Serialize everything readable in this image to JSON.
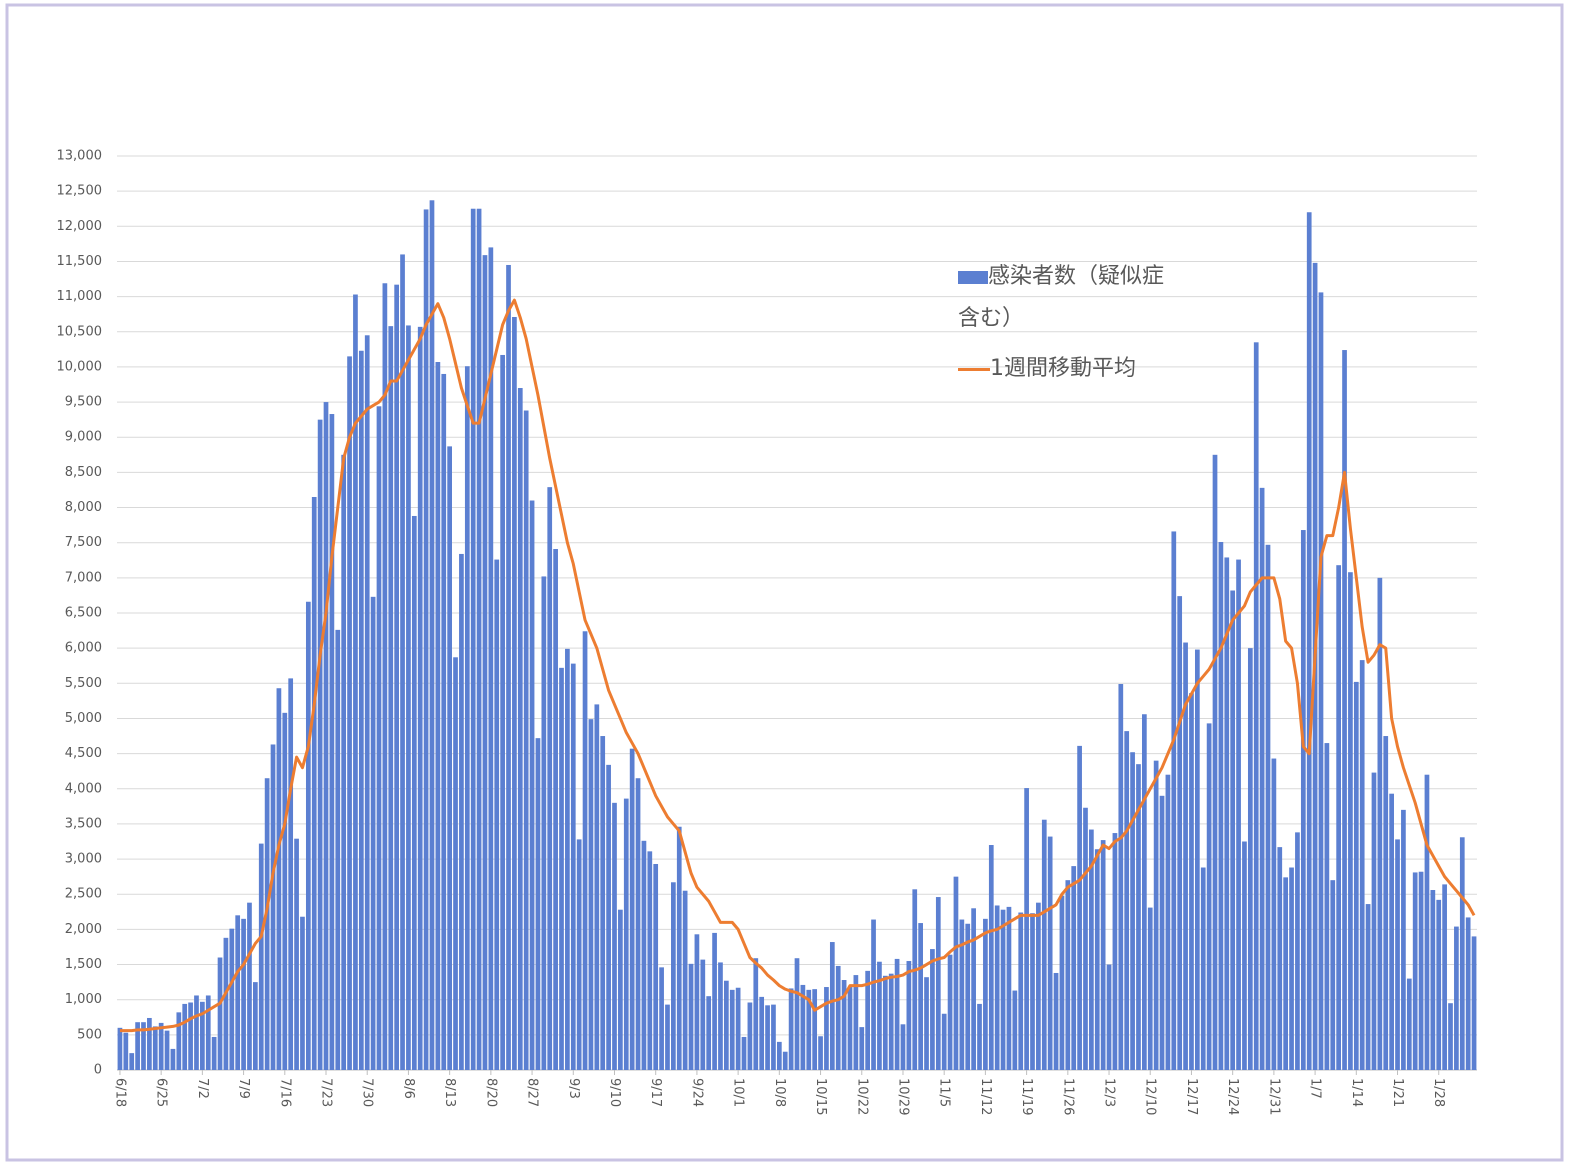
{
  "chart_data": {
    "type": "bar",
    "categories": [
      "6/18",
      null,
      null,
      null,
      null,
      null,
      null,
      "6/25",
      null,
      null,
      null,
      null,
      null,
      null,
      "7/2",
      null,
      null,
      null,
      null,
      null,
      null,
      "7/9",
      null,
      null,
      null,
      null,
      null,
      null,
      "7/16",
      null,
      null,
      null,
      null,
      null,
      null,
      "7/23",
      null,
      null,
      null,
      null,
      null,
      null,
      "7/30",
      null,
      null,
      null,
      null,
      null,
      null,
      "8/6",
      null,
      null,
      null,
      null,
      null,
      null,
      "8/13",
      null,
      null,
      null,
      null,
      null,
      null,
      "8/20",
      null,
      null,
      null,
      null,
      null,
      null,
      "8/27",
      null,
      null,
      null,
      null,
      null,
      null,
      "9/3",
      null,
      null,
      null,
      null,
      null,
      null,
      "9/10",
      null,
      null,
      null,
      null,
      null,
      null,
      "9/17",
      null,
      null,
      null,
      null,
      null,
      null,
      "9/24",
      null,
      null,
      null,
      null,
      null,
      null,
      "10/1",
      null,
      null,
      null,
      null,
      null,
      null,
      "10/8",
      null,
      null,
      null,
      null,
      null,
      null,
      "10/15",
      null,
      null,
      null,
      null,
      null,
      null,
      "10/22",
      null,
      null,
      null,
      null,
      null,
      null,
      "10/29",
      null,
      null,
      null,
      null,
      null,
      null,
      "11/5",
      null,
      null,
      null,
      null,
      null,
      null,
      "11/12",
      null,
      null,
      null,
      null,
      null,
      null,
      "11/19",
      null,
      null,
      null,
      null,
      null,
      null,
      "11/26",
      null,
      null,
      null,
      null,
      null,
      null,
      "12/3",
      null,
      null,
      null,
      null,
      null,
      null,
      "12/10",
      null,
      null,
      null,
      null,
      null,
      null,
      "12/17",
      null,
      null,
      null,
      null,
      null,
      null,
      "12/24",
      null,
      null,
      null,
      null,
      null,
      null,
      "12/31",
      null,
      null,
      null,
      null,
      null,
      null,
      "1/7",
      null,
      null,
      null,
      null,
      null,
      null,
      "1/14",
      null,
      null,
      null,
      null,
      null,
      null,
      "1/21",
      null,
      null,
      null,
      null,
      null,
      null,
      "1/28",
      null,
      null,
      null,
      null,
      null,
      null
    ],
    "series": [
      {
        "name": "感染者数（疑似症含む）",
        "type": "bar",
        "color": "#5b7fd1",
        "values": [
          600,
          530,
          240,
          680,
          680,
          740,
          620,
          670,
          560,
          300,
          820,
          940,
          960,
          1060,
          970,
          1060,
          470,
          1600,
          1880,
          2010,
          2200,
          2150,
          2380,
          1250,
          3220,
          4150,
          4630,
          5430,
          5080,
          5570,
          3290,
          2180,
          6660,
          8150,
          9250,
          9500,
          9330,
          6260,
          8750,
          10150,
          11030,
          10230,
          10450,
          6730,
          9440,
          11190,
          10580,
          11170,
          11600,
          10590,
          7880,
          10570,
          12240,
          12370,
          10070,
          9900,
          8870,
          5870,
          7340,
          10010,
          12250,
          12250,
          11590,
          11700,
          7260,
          10170,
          11450,
          10710,
          9700,
          9380,
          8100,
          4720,
          7020,
          8290,
          7410,
          5720,
          5990,
          5780,
          3280,
          6240,
          4990,
          5200,
          4750,
          4340,
          3800,
          2280,
          3860,
          4570,
          4150,
          3260,
          3110,
          2930,
          1460,
          930,
          2670,
          3460,
          2550,
          1510,
          1930,
          1570,
          1050,
          1950,
          1530,
          1270,
          1140,
          1170,
          470,
          960,
          1590,
          1040,
          920,
          930,
          400,
          260,
          1160,
          1590,
          1210,
          1140,
          1150,
          480,
          1180,
          1820,
          1480,
          1280,
          1180,
          1350,
          610,
          1410,
          2140,
          1540,
          1340,
          1370,
          1580,
          650,
          1550,
          2570,
          2090,
          1320,
          1720,
          2460,
          800,
          1640,
          2750,
          2140,
          2080,
          2300,
          940,
          2150,
          3200,
          2340,
          2280,
          2320,
          1130,
          2240,
          4010,
          2230,
          2380,
          3560,
          3320,
          1380,
          2480,
          2700,
          2900,
          4610,
          3730,
          3420,
          3140,
          3270,
          1500,
          3370,
          5490,
          4820,
          4520,
          4350,
          5060,
          2310,
          4400,
          3900,
          4200,
          7660,
          6740,
          6080,
          5360,
          5980,
          2880,
          4930,
          8750,
          7510,
          7290,
          6820,
          7260,
          3250,
          6000,
          10350,
          8280,
          7470,
          4430,
          3170,
          2740,
          2880,
          3380,
          7680,
          12200,
          11480,
          11060,
          4650,
          2700,
          7180,
          10240,
          7080,
          5520,
          5830,
          2360,
          4230,
          7000,
          4750,
          3930,
          3280,
          3700,
          1300,
          2810,
          2820,
          4200,
          2560,
          2420,
          2640,
          950,
          2040,
          3310,
          2170,
          1900
        ]
      },
      {
        "name": "1週間移動平均",
        "type": "line",
        "color": "#ed7d31",
        "values": [
          560,
          560,
          560,
          570,
          570,
          580,
          590,
          600,
          610,
          620,
          640,
          680,
          730,
          770,
          800,
          850,
          900,
          950,
          1100,
          1250,
          1400,
          1500,
          1650,
          1800,
          1900,
          2300,
          2800,
          3200,
          3500,
          4000,
          4450,
          4300,
          4600,
          5200,
          5900,
          6500,
          7300,
          8000,
          8700,
          9000,
          9200,
          9300,
          9400,
          9450,
          9500,
          9600,
          9800,
          9800,
          9950,
          10100,
          10250,
          10400,
          10600,
          10750,
          10900,
          10700,
          10400,
          10050,
          9700,
          9450,
          9200,
          9200,
          9550,
          9900,
          10250,
          10600,
          10800,
          10950,
          10700,
          10400,
          10000,
          9600,
          9150,
          8700,
          8300,
          7900,
          7500,
          7200,
          6800,
          6400,
          6200,
          6000,
          5700,
          5400,
          5200,
          5000,
          4800,
          4650,
          4500,
          4300,
          4100,
          3900,
          3750,
          3600,
          3500,
          3400,
          3100,
          2800,
          2600,
          2500,
          2400,
          2250,
          2100,
          2100,
          2100,
          2000,
          1800,
          1600,
          1520,
          1450,
          1350,
          1280,
          1200,
          1150,
          1120,
          1100,
          1050,
          1000,
          850,
          900,
          950,
          980,
          1000,
          1050,
          1200,
          1200,
          1200,
          1220,
          1250,
          1270,
          1300,
          1320,
          1330,
          1350,
          1400,
          1420,
          1450,
          1500,
          1550,
          1580,
          1600,
          1680,
          1750,
          1780,
          1820,
          1850,
          1900,
          1950,
          1980,
          2000,
          2050,
          2100,
          2150,
          2200,
          2200,
          2200,
          2200,
          2250,
          2300,
          2350,
          2500,
          2600,
          2650,
          2700,
          2800,
          2900,
          3050,
          3200,
          3150,
          3250,
          3300,
          3400,
          3550,
          3700,
          3850,
          4000,
          4150,
          4300,
          4500,
          4700,
          4950,
          5200,
          5350,
          5500,
          5600,
          5700,
          5850,
          6000,
          6200,
          6400,
          6500,
          6600,
          6800,
          6900,
          7000,
          7000,
          7000,
          6700,
          6100,
          6000,
          5500,
          4600,
          4500,
          5900,
          7300,
          7600,
          7600,
          8000,
          8500,
          7700,
          7000,
          6300,
          5800,
          5900,
          6050,
          6000,
          5000,
          4600,
          4300,
          4050,
          3800,
          3500,
          3200,
          3050,
          2900,
          2750,
          2650,
          2550,
          2450,
          2350,
          2200
        ]
      }
    ],
    "ylim": [
      0,
      13000
    ],
    "yticks": [
      0,
      500,
      {
        "value": 1000,
        "label": "1,000"
      },
      {
        "value": 1500,
        "label": "1,500"
      },
      {
        "value": 2000,
        "label": "2,000"
      },
      {
        "value": 2500,
        "label": "2,500"
      },
      {
        "value": 3000,
        "label": "3,000"
      },
      {
        "value": 3500,
        "label": "3,500"
      },
      {
        "value": 4000,
        "label": "4,000"
      },
      {
        "value": 4500,
        "label": "4,500"
      },
      {
        "value": 5000,
        "label": "5,000"
      },
      {
        "value": 5500,
        "label": "5,500"
      },
      {
        "value": 6000,
        "label": "6,000"
      },
      {
        "value": 6500,
        "label": "6,500"
      },
      {
        "value": 7000,
        "label": "7,000"
      },
      {
        "value": 7500,
        "label": "7,500"
      },
      {
        "value": 8000,
        "label": "8,000"
      },
      {
        "value": 8500,
        "label": "8,500"
      },
      {
        "value": 9000,
        "label": "9,000"
      },
      {
        "value": 9500,
        "label": "9,500"
      },
      {
        "value": 10000,
        "label": "10,000"
      },
      {
        "value": 10500,
        "label": "10,500"
      },
      {
        "value": 11000,
        "label": "11,000"
      },
      {
        "value": 11500,
        "label": "11,500"
      },
      {
        "value": 12000,
        "label": "12,000"
      },
      {
        "value": 12500,
        "label": "12,500"
      },
      {
        "value": 13000,
        "label": "13,000"
      }
    ],
    "grid": true
  }
}
